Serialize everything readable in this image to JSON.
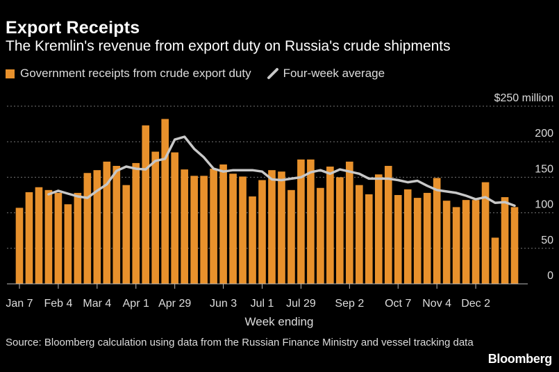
{
  "header": {
    "title": "Export Receipts",
    "subtitle": "The Kremlin's revenue from export duty on Russia's crude shipments"
  },
  "legend": {
    "bars_label": "Government receipts from crude export duty",
    "line_label": "Four-week average"
  },
  "source": "Source: Bloomberg calculation using data from the Russian Finance Ministry and vessel tracking data",
  "logo": "Bloomberg",
  "colors": {
    "bar": "#E8912C",
    "line": "#C8C8C8",
    "grid": "#777777",
    "axis": "#BBBBBB"
  },
  "chart_data": {
    "type": "bar",
    "title": "Export Receipts",
    "xlabel": "Week ending",
    "ylabel": "",
    "y_unit_label": "$250 million",
    "ylim": [
      0,
      250
    ],
    "yticks": [
      0,
      50,
      100,
      150,
      200,
      250
    ],
    "ytick_labels": [
      "0",
      "50",
      "100",
      "150",
      "200",
      "$250 million"
    ],
    "grid": true,
    "legend_position": "top-left",
    "xtick_labels": [
      {
        "index": 0,
        "label": "Jan 7"
      },
      {
        "index": 4,
        "label": "Feb 4"
      },
      {
        "index": 8,
        "label": "Mar 4"
      },
      {
        "index": 12,
        "label": "Apr 1"
      },
      {
        "index": 16,
        "label": "Apr 29"
      },
      {
        "index": 21,
        "label": "Jun 3"
      },
      {
        "index": 25,
        "label": "Jul 1"
      },
      {
        "index": 29,
        "label": "Jul 29"
      },
      {
        "index": 34,
        "label": "Sep 2"
      },
      {
        "index": 39,
        "label": "Oct 7"
      },
      {
        "index": 43,
        "label": "Nov 4"
      },
      {
        "index": 47,
        "label": "Dec 2"
      }
    ],
    "series": [
      {
        "name": "Government receipts from crude export duty",
        "type": "bar",
        "values": [
          107,
          129,
          136,
          132,
          128,
          112,
          128,
          156,
          160,
          172,
          166,
          139,
          170,
          223,
          186,
          232,
          185,
          161,
          152,
          152,
          162,
          168,
          155,
          151,
          123,
          146,
          160,
          158,
          132,
          175,
          175,
          135,
          165,
          150,
          172,
          139,
          126,
          154,
          166,
          125,
          133,
          121,
          128,
          149,
          117,
          108,
          118,
          118,
          143,
          65,
          122,
          108
        ]
      },
      {
        "name": "Four-week average",
        "type": "line",
        "values": [
          null,
          null,
          null,
          126,
          131,
          127,
          123,
          121,
          131,
          140,
          159,
          165,
          162,
          161,
          173,
          176,
          203,
          207,
          190,
          178,
          162,
          158,
          160,
          160,
          160,
          158,
          147,
          146,
          148,
          150,
          157,
          160,
          155,
          161,
          158,
          155,
          148,
          148,
          148,
          146,
          143,
          145,
          138,
          132,
          130,
          128,
          124,
          119,
          122,
          114,
          115,
          110
        ]
      }
    ]
  }
}
